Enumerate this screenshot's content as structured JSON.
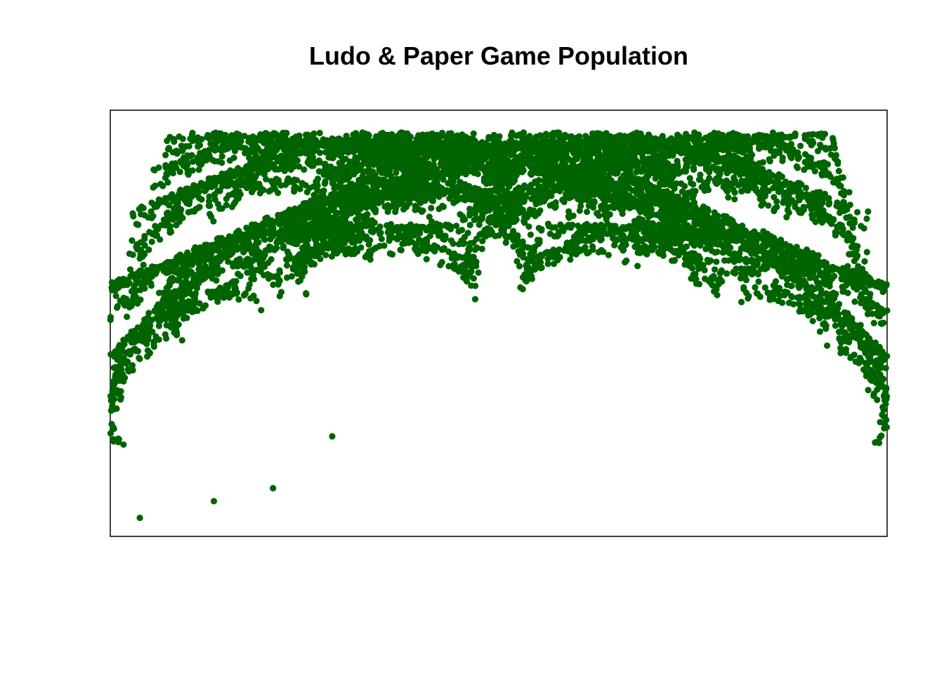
{
  "chart_data": {
    "type": "scatter",
    "title": "Ludo & Paper Game Population",
    "xlabel": "",
    "ylabel": "",
    "axes_shown": false,
    "grid": false,
    "frame": true,
    "point_color": "#006400",
    "point_shape": "filled-circle",
    "structure": "chaos-game (iterated function system) point cloud forming a symmetric fractal tree crown of five leaf-like lobes",
    "xlim": [
      -1.05,
      1.05
    ],
    "ylim": [
      -0.05,
      1.1
    ],
    "ifs_maps": [
      {
        "a": 0.5,
        "b": 0.0,
        "c": 0.0,
        "d": 0.5,
        "e": 0.0,
        "f": 0.5,
        "p": 0.2
      },
      {
        "a": 0.4619,
        "b": -0.1913,
        "c": 0.1913,
        "d": 0.4619,
        "e": -0.5,
        "f": 0.3,
        "p": 0.2
      },
      {
        "a": 0.4619,
        "b": 0.1913,
        "c": -0.1913,
        "d": 0.4619,
        "e": 0.5,
        "f": 0.3,
        "p": 0.2
      },
      {
        "a": 0.5,
        "b": 0.0,
        "c": 0.0,
        "d": 0.5,
        "e": -0.45,
        "f": 0.52,
        "p": 0.2
      },
      {
        "a": 0.5,
        "b": 0.0,
        "c": 0.0,
        "d": 0.5,
        "e": 0.45,
        "f": 0.52,
        "p": 0.2
      }
    ],
    "n_points": 9000,
    "transient_points": [
      {
        "x": -0.97,
        "y": 0.0
      },
      {
        "x": -0.77,
        "y": 0.045
      },
      {
        "x": -0.61,
        "y": 0.08
      },
      {
        "x": -0.45,
        "y": 0.22
      }
    ]
  }
}
